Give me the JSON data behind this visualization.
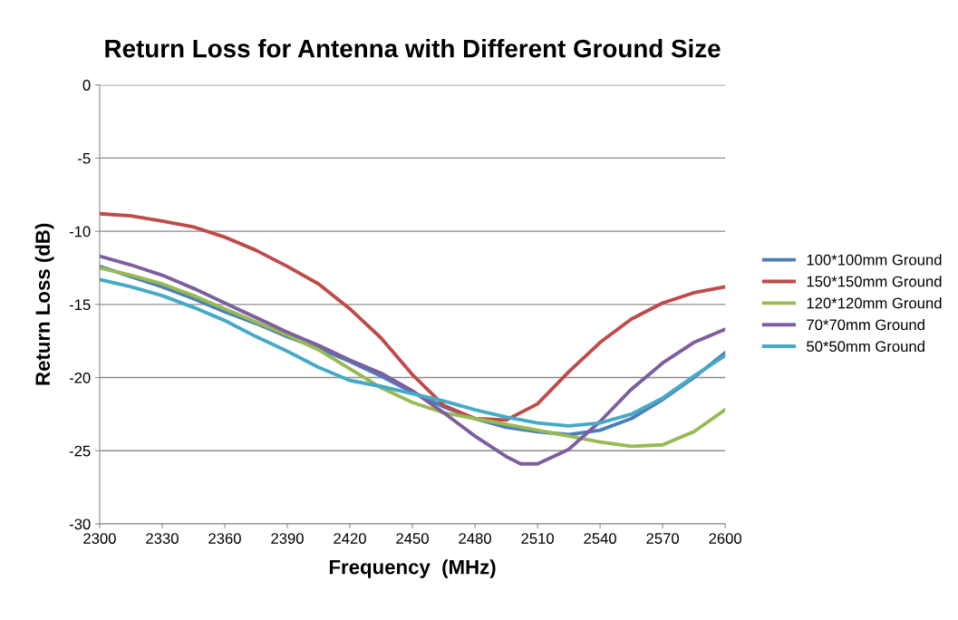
{
  "chart_data": {
    "type": "line",
    "title": "Return Loss for Antenna with Different Ground Size",
    "xlabel": "Frequency  (MHz)",
    "ylabel": "Return Loss (dB)",
    "x": [
      2300,
      2315,
      2330,
      2345,
      2360,
      2375,
      2390,
      2405,
      2420,
      2435,
      2450,
      2465,
      2480,
      2495,
      2510,
      2525,
      2540,
      2555,
      2570,
      2585,
      2600
    ],
    "series": [
      {
        "name": "100*100mm Ground",
        "color": "#4a7ebb",
        "values": [
          -12.4,
          -13.1,
          -13.8,
          -14.6,
          -15.5,
          -16.3,
          -17.2,
          -18.0,
          -18.9,
          -19.9,
          -21.0,
          -22.0,
          -22.8,
          -23.4,
          -23.7,
          -23.9,
          -23.6,
          -22.8,
          -21.5,
          -20.0,
          -18.3
        ]
      },
      {
        "name": "150*150mm Ground",
        "color": "#be4b48",
        "values": [
          -8.8,
          -8.95,
          -9.3,
          -9.7,
          -10.4,
          -11.3,
          -12.4,
          -13.6,
          -15.3,
          -17.3,
          -19.8,
          -21.9,
          -22.8,
          -22.9,
          -21.8,
          -19.6,
          -17.6,
          -16.0,
          -14.9,
          -14.2,
          -13.8
        ]
      },
      {
        "name": "120*120mm Ground",
        "color": "#98b954",
        "values": [
          -12.5,
          -13.0,
          -13.6,
          -14.4,
          -15.3,
          -16.2,
          -17.1,
          -18.1,
          -19.4,
          -20.7,
          -21.7,
          -22.4,
          -22.8,
          -23.2,
          -23.6,
          -24.0,
          -24.4,
          -24.7,
          -24.6,
          -23.7,
          -22.2
        ]
      },
      {
        "name": "70*70mm Ground",
        "color": "#7d5fa0",
        "x": [
          2300,
          2315,
          2330,
          2345,
          2360,
          2375,
          2390,
          2405,
          2420,
          2435,
          2450,
          2465,
          2480,
          2495,
          2502,
          2510,
          2525,
          2540,
          2555,
          2570,
          2585,
          2600
        ],
        "values": [
          -11.7,
          -12.3,
          -13.0,
          -13.9,
          -14.9,
          -15.9,
          -16.9,
          -17.8,
          -18.8,
          -19.7,
          -20.9,
          -22.4,
          -24.0,
          -25.4,
          -25.9,
          -25.9,
          -24.9,
          -23.0,
          -20.8,
          -19.0,
          -17.6,
          -16.7
        ]
      },
      {
        "name": "50*50mm Ground",
        "color": "#46aac5",
        "values": [
          -13.3,
          -13.8,
          -14.4,
          -15.2,
          -16.1,
          -17.2,
          -18.2,
          -19.3,
          -20.2,
          -20.6,
          -21.1,
          -21.6,
          -22.2,
          -22.7,
          -23.1,
          -23.3,
          -23.1,
          -22.5,
          -21.4,
          -19.9,
          -18.5
        ]
      }
    ],
    "xlim": [
      2300,
      2600
    ],
    "xticks": [
      2300,
      2330,
      2360,
      2390,
      2420,
      2450,
      2480,
      2510,
      2540,
      2570,
      2600
    ],
    "ylim": [
      -30,
      0
    ],
    "yticks": [
      -30,
      -25,
      -20,
      -15,
      -10,
      -5,
      0
    ],
    "grid": "y",
    "legend": "right",
    "marker": "none",
    "line_style": "solid"
  }
}
